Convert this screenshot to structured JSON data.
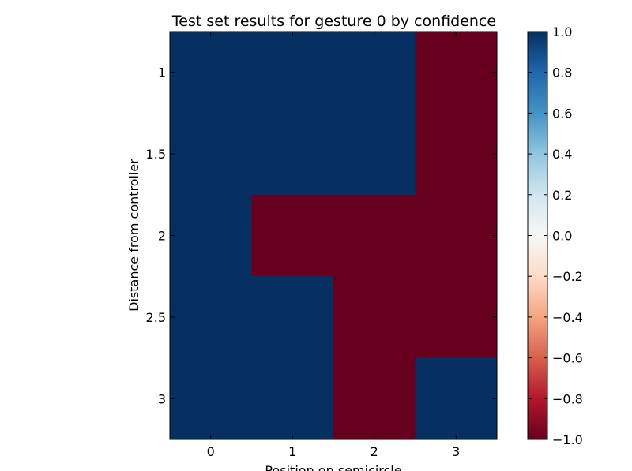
{
  "chart_data": {
    "type": "heatmap",
    "title": "Test set results for gesture 0 by confidence",
    "xlabel": "Position on semicircle",
    "ylabel": "Distance from controller",
    "x_ticks": [
      "0",
      "1",
      "2",
      "3"
    ],
    "y_ticks": [
      "1",
      "1.5",
      "2",
      "2.5",
      "3"
    ],
    "rows_y": [
      1,
      1.5,
      2,
      2.5,
      3
    ],
    "cols_x": [
      0,
      1,
      2,
      3
    ],
    "values": [
      [
        1,
        1,
        1,
        -1
      ],
      [
        1,
        1,
        1,
        -1
      ],
      [
        1,
        -1,
        -1,
        -1
      ],
      [
        1,
        1,
        -1,
        -1
      ],
      [
        1,
        1,
        -1,
        1
      ]
    ],
    "xlim": [
      -0.5,
      3.5
    ],
    "ylim": [
      0.75,
      3.25
    ],
    "colorbar": {
      "range": [
        -1.0,
        1.0
      ],
      "ticks": [
        "1.0",
        "0.8",
        "0.6",
        "0.4",
        "0.2",
        "0.0",
        "−0.2",
        "−0.4",
        "−0.6",
        "−0.8",
        "−1.0"
      ],
      "tick_values": [
        1.0,
        0.8,
        0.6,
        0.4,
        0.2,
        0.0,
        -0.2,
        -0.4,
        -0.6,
        -0.8,
        -1.0
      ],
      "colors": [
        "#67001f",
        "#b2182b",
        "#d6604d",
        "#f4a582",
        "#fddbc7",
        "#f7f7f7",
        "#d1e5f0",
        "#92c5de",
        "#4393c3",
        "#2166ac",
        "#053061"
      ]
    },
    "grid": false
  }
}
